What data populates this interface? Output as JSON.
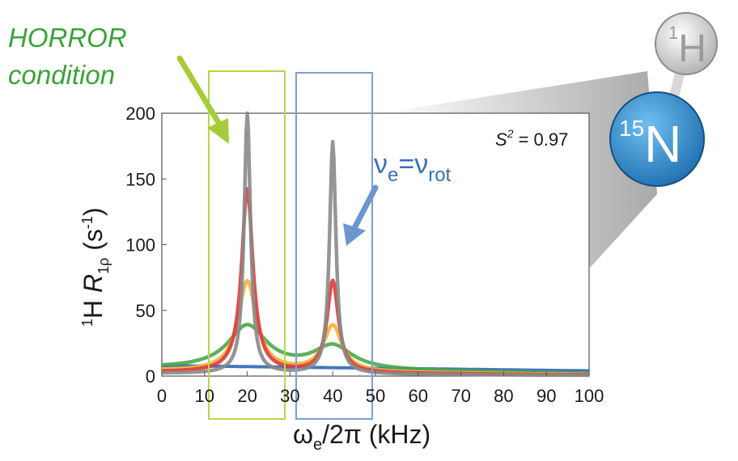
{
  "annotations": {
    "horror_line1": "HORROR",
    "horror_line2": "condition",
    "s2_sym": "S",
    "s2_sup": "2",
    "s2_val": " = 0.97",
    "nu_sym": "ν",
    "nu_sub_e": "e",
    "nu_eq": "=",
    "nu_sub_rot": "rot"
  },
  "molecule": {
    "h_mass": "1",
    "h_sym": "H",
    "n_mass": "15",
    "n_sym": "N"
  },
  "colors": {
    "gray": "#8a8a8a",
    "red": "#e03a3a",
    "orange": "#f2b13a",
    "green": "#4aa84a",
    "blue": "#2f66b3",
    "lime_box": "#b8d84a",
    "blue_box": "#7aa0d6",
    "horror_text": "#3aa33a",
    "nu_text": "#3a6fb8"
  },
  "chart_data": {
    "type": "line",
    "title": "",
    "xlabel": {
      "omega": "ω",
      "sub": "e",
      "rest": "/2π  (kHz)"
    },
    "ylabel": {
      "pre_sup": "1",
      "H": "H ",
      "R": "R",
      "sub": "1ρ",
      "unit_open": " (s",
      "unit_sup": "-1",
      "unit_close": ")"
    },
    "xlim": [
      0,
      100
    ],
    "ylim": [
      0,
      200
    ],
    "xticks": [
      "0",
      "10",
      "20",
      "30",
      "40",
      "50",
      "60",
      "70",
      "80",
      "90",
      "100"
    ],
    "yticks": [
      "0",
      "50",
      "100",
      "150",
      "200"
    ],
    "grid": false,
    "series": [
      {
        "color": "#2f66b3",
        "peak20": 8,
        "peak40": 8,
        "base": 8,
        "width": 30,
        "flat": true
      },
      {
        "color": "#4aa84a",
        "peak20": 38,
        "peak40": 22,
        "base": 6,
        "width": 5.5
      },
      {
        "color": "#f2b13a",
        "peak20": 72,
        "peak40": 38,
        "base": 4,
        "width": 2.6
      },
      {
        "color": "#e03a3a",
        "peak20": 142,
        "peak40": 72,
        "base": 3,
        "width": 1.6
      },
      {
        "color": "#8a8a8a",
        "peak20": 200,
        "peak40": 178,
        "base": 2,
        "width": 0.9
      }
    ]
  }
}
